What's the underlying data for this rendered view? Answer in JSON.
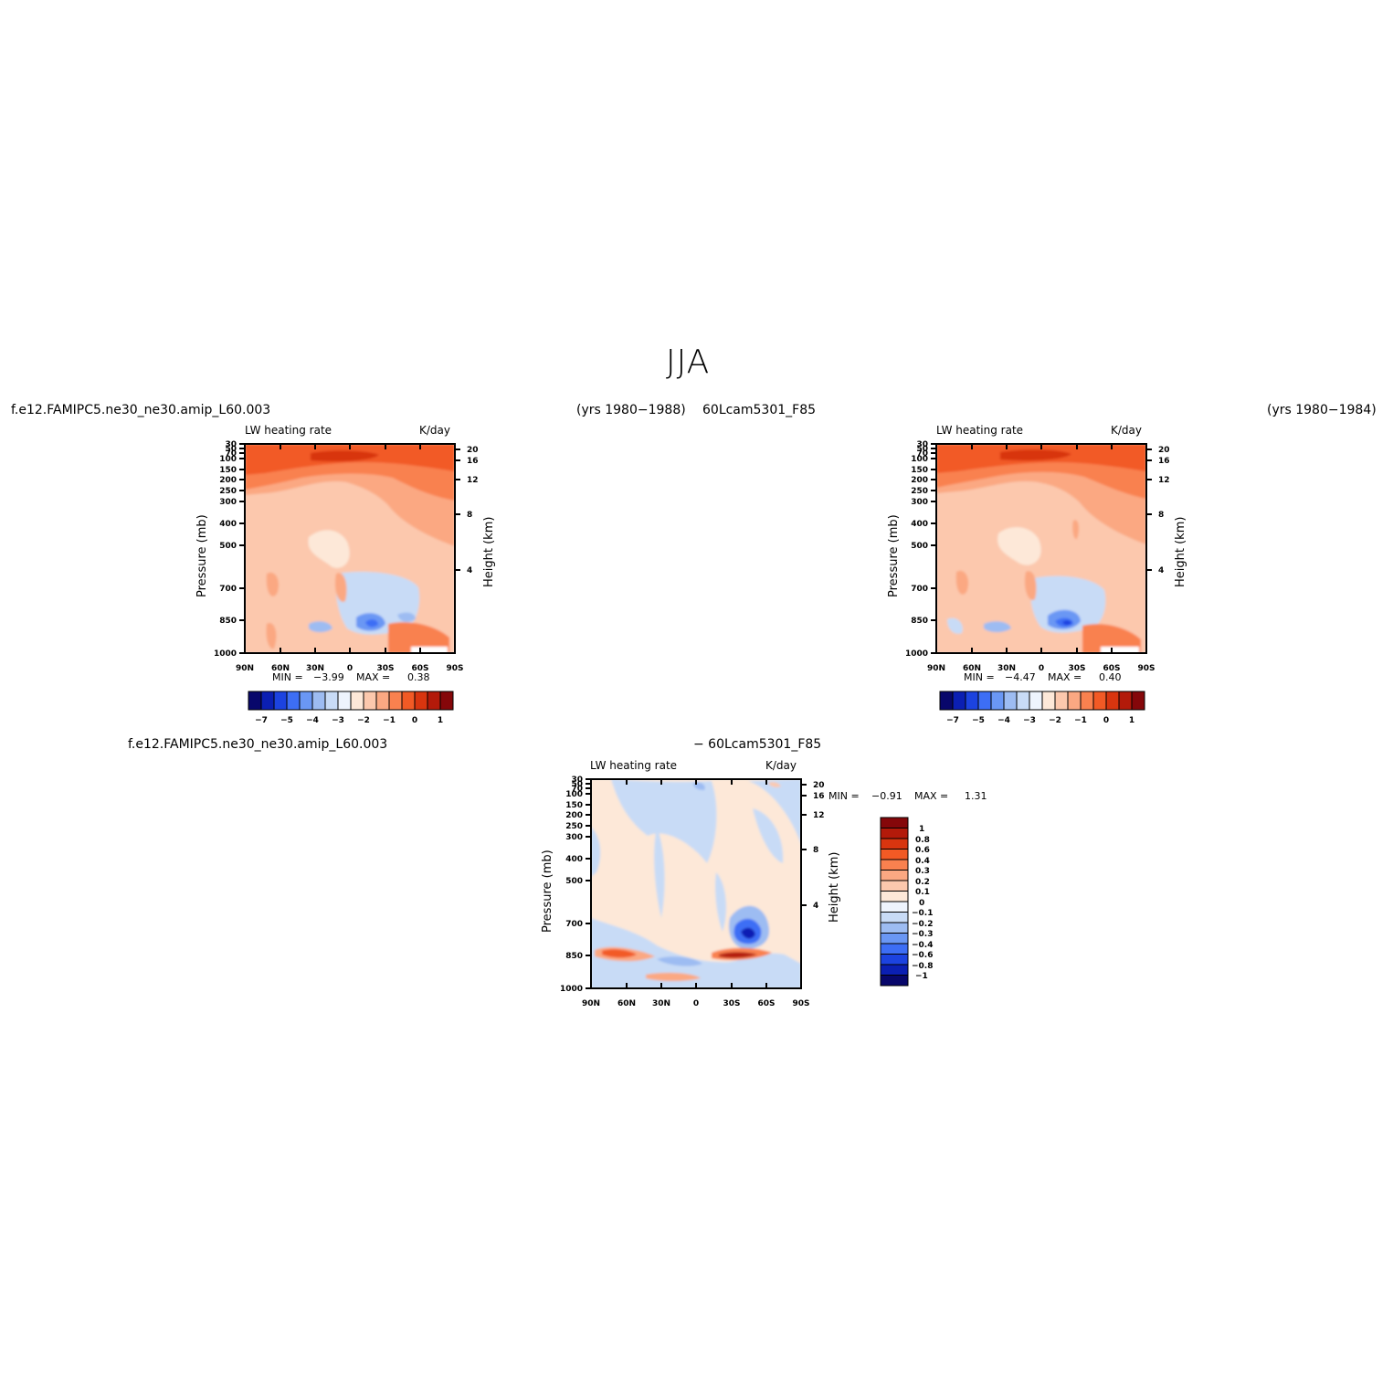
{
  "figure": {
    "title": "JJA",
    "case_name": "f.e12.FAMIPC5.ne30_ne30.amip_L60.003",
    "case_years": "(yrs 1980−1988)",
    "control_name": "60Lcam5301_F85",
    "control_years": "(yrs 1980−1984)",
    "diff_name": "− 60Lcam5301_F85"
  },
  "chart_data": [
    {
      "type": "heatmap",
      "title": "LW heating rate",
      "units": "K/day",
      "ylabel": "Pressure (mb)",
      "ylabel_right": "Height (km)",
      "x_ticks": [
        "90N",
        "60N",
        "30N",
        "0",
        "30S",
        "60S",
        "90S"
      ],
      "y_ticks": [
        "30",
        "50",
        "70",
        "100",
        "150",
        "200",
        "250",
        "300",
        "400",
        "500",
        "700",
        "850",
        "1000"
      ],
      "y_ticks_right": [
        "20",
        "16",
        "12",
        "8",
        "4"
      ],
      "min_label": "MIN =",
      "max_label": "MAX =",
      "min": "−3.99",
      "max": "0.38",
      "levels": [
        "−7",
        "−5",
        "−4",
        "−3",
        "−2",
        "−1",
        "0",
        "1"
      ],
      "colors": [
        "#08076b",
        "#0b1fb3",
        "#1c43e0",
        "#3d6ef5",
        "#6a97f4",
        "#9dbcf2",
        "#c8dbf6",
        "#eef4fd",
        "#fde8d8",
        "#fcc8ad",
        "#fba882",
        "#f9814f",
        "#f25a25",
        "#d8350f",
        "#b31a0a",
        "#85070a"
      ]
    },
    {
      "type": "heatmap",
      "title": "LW heating rate",
      "units": "K/day",
      "ylabel": "Pressure (mb)",
      "ylabel_right": "Height (km)",
      "x_ticks": [
        "90N",
        "60N",
        "30N",
        "0",
        "30S",
        "60S",
        "90S"
      ],
      "y_ticks": [
        "30",
        "50",
        "70",
        "100",
        "150",
        "200",
        "250",
        "300",
        "400",
        "500",
        "700",
        "850",
        "1000"
      ],
      "y_ticks_right": [
        "20",
        "16",
        "12",
        "8",
        "4"
      ],
      "min_label": "MIN =",
      "max_label": "MAX =",
      "min": "−4.47",
      "max": "0.40",
      "levels": [
        "−7",
        "−5",
        "−4",
        "−3",
        "−2",
        "−1",
        "0",
        "1"
      ],
      "colors": [
        "#08076b",
        "#0b1fb3",
        "#1c43e0",
        "#3d6ef5",
        "#6a97f4",
        "#9dbcf2",
        "#c8dbf6",
        "#eef4fd",
        "#fde8d8",
        "#fcc8ad",
        "#fba882",
        "#f9814f",
        "#f25a25",
        "#d8350f",
        "#b31a0a",
        "#85070a"
      ]
    },
    {
      "type": "heatmap",
      "title": "LW heating rate",
      "units": "K/day",
      "ylabel": "Pressure (mb)",
      "ylabel_right": "Height (km)",
      "x_ticks": [
        "90N",
        "60N",
        "30N",
        "0",
        "30S",
        "60S",
        "90S"
      ],
      "y_ticks": [
        "30",
        "50",
        "70",
        "100",
        "150",
        "200",
        "250",
        "300",
        "400",
        "500",
        "700",
        "850",
        "1000"
      ],
      "y_ticks_right": [
        "20",
        "16",
        "12",
        "8",
        "4"
      ],
      "min_label": "MIN =",
      "max_label": "MAX =",
      "min": "−0.91",
      "max": "1.31",
      "levels": [
        "1",
        "0.8",
        "0.6",
        "0.4",
        "0.3",
        "0.2",
        "0.1",
        "0",
        "−0.1",
        "−0.2",
        "−0.3",
        "−0.4",
        "−0.6",
        "−0.8",
        "−1"
      ],
      "colors": [
        "#85070a",
        "#b31a0a",
        "#d8350f",
        "#f25a25",
        "#f9814f",
        "#fba882",
        "#fcc8ad",
        "#fde8d8",
        "#eef4fd",
        "#c8dbf6",
        "#9dbcf2",
        "#6a97f4",
        "#3d6ef5",
        "#1c43e0",
        "#0b1fb3",
        "#08076b"
      ]
    }
  ]
}
